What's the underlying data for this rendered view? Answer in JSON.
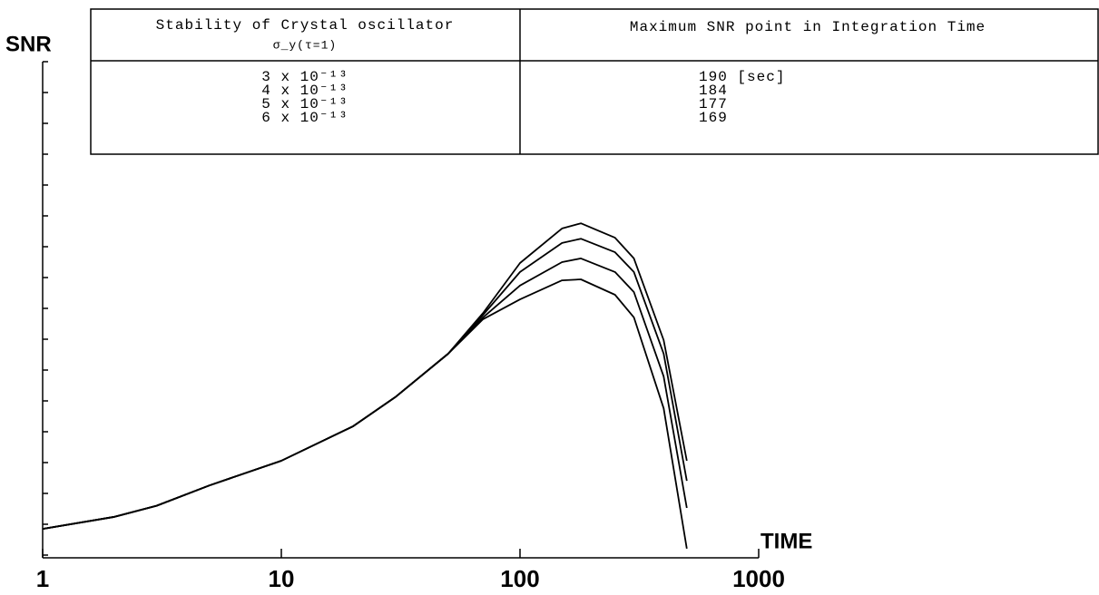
{
  "chart_data": {
    "type": "line",
    "y_label": "SNR",
    "x_label": "TIME",
    "xscale": "log",
    "xlim": [
      1,
      1000
    ],
    "xticks": [
      1,
      10,
      100,
      1000
    ],
    "ylim": [
      0,
      16
    ],
    "yticks": [
      0,
      1,
      2,
      3,
      4,
      5,
      6,
      7,
      8,
      9,
      10,
      11,
      12,
      13,
      14,
      15,
      16
    ],
    "x": [
      1,
      2,
      3,
      5,
      10,
      20,
      30,
      50,
      70,
      100,
      150,
      180,
      250,
      300,
      400,
      500
    ],
    "series": [
      {
        "name": "3 x 10⁻¹³",
        "color": "#000000",
        "values": [
          0.85,
          1.24,
          1.6,
          2.26,
          3.06,
          4.18,
          5.12,
          6.53,
          7.85,
          9.47,
          10.59,
          10.76,
          10.29,
          9.62,
          6.97,
          3.06
        ]
      },
      {
        "name": "4 x 10⁻¹³",
        "color": "#000000",
        "values": [
          0.85,
          1.24,
          1.6,
          2.26,
          3.06,
          4.18,
          5.12,
          6.53,
          7.79,
          9.18,
          10.12,
          10.26,
          9.82,
          9.18,
          6.53,
          2.41
        ]
      },
      {
        "name": "5 x 10⁻¹³",
        "color": "#000000",
        "values": [
          0.85,
          1.24,
          1.6,
          2.26,
          3.06,
          4.18,
          5.12,
          6.53,
          7.71,
          8.74,
          9.5,
          9.62,
          9.18,
          8.53,
          5.79,
          1.53
        ]
      },
      {
        "name": "6 x 10⁻¹³",
        "color": "#000000",
        "values": [
          0.85,
          1.24,
          1.6,
          2.26,
          3.06,
          4.18,
          5.12,
          6.53,
          7.65,
          8.29,
          8.91,
          8.94,
          8.44,
          7.71,
          4.76,
          0.21
        ]
      }
    ],
    "table": {
      "header_left": "Stability of Crystal oscillator",
      "header_left_sub": "σ_y(τ=1)",
      "header_right": "Maximum SNR point in Integration Time",
      "max_points": [
        "190 [sec]",
        "184",
        "177",
        "169"
      ]
    }
  }
}
